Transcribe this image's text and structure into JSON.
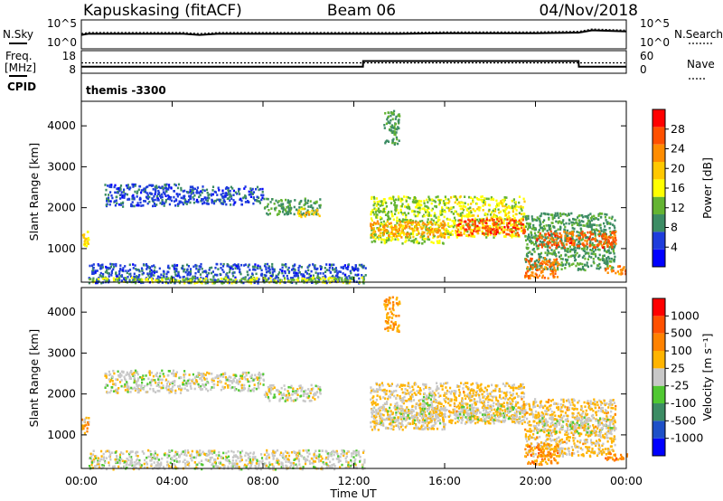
{
  "header": {
    "station": "Kapuskasing (fitACF)",
    "beam": "Beam 06",
    "date": "04/Nov/2018"
  },
  "params_panel": {
    "nsky_label": "N.Sky",
    "nsearch_label": "N.Search",
    "noise_ticks_left": [
      "10^5",
      "10^0"
    ],
    "noise_ticks_right": [
      "10^5",
      "10^0"
    ],
    "freq_label_1": "Freq.",
    "freq_label_2": "[MHz]",
    "freq_ticks": [
      "18",
      "8"
    ],
    "nave_label": "Nave",
    "nave_ticks": [
      "60",
      "0"
    ],
    "cpid_label": "CPID",
    "cpid_value": "themis -3300"
  },
  "power_colorbar": {
    "label": "Power [dB]",
    "ticks": [
      "28",
      "24",
      "20",
      "16",
      "12",
      "8",
      "4"
    ],
    "colors": [
      "#0000ff",
      "#1e3cdc",
      "#3c8c64",
      "#64b432",
      "#ffff00",
      "#ffc800",
      "#ff8c00",
      "#ff5000",
      "#ff0000"
    ]
  },
  "velocity_colorbar": {
    "label": "Velocity [m s⁻¹]",
    "ticks": [
      "1000",
      "500",
      "100",
      "25",
      "-25",
      "-100",
      "-500",
      "-1000"
    ],
    "colors": [
      "#0000ff",
      "#1e50c8",
      "#3c8c64",
      "#50c832",
      "#c8c8c8",
      "#ffb400",
      "#ff8200",
      "#ff5000",
      "#ff0000"
    ]
  },
  "axes": {
    "ylabel": "Slant Range [km]",
    "yticks": [
      "4000",
      "3000",
      "2000",
      "1000"
    ],
    "xticks": [
      "00:00",
      "04:00",
      "08:00",
      "12:00",
      "16:00",
      "20:00",
      "00:00"
    ],
    "xlabel": "Time UT"
  },
  "chart_data": [
    {
      "type": "line",
      "title": "N.Sky / N.Search",
      "x_hours": [
        0,
        0.3,
        2,
        4.5,
        5.2,
        6,
        8,
        10,
        12,
        14,
        16,
        18,
        20,
        21.9,
        22.5,
        24
      ],
      "series": [
        {
          "name": "N.Sky",
          "values": [
            2.4,
            2.6,
            2.6,
            2.6,
            2.4,
            2.6,
            2.6,
            2.6,
            2.6,
            2.6,
            2.7,
            2.7,
            2.7,
            2.8,
            3.2,
            3.0
          ]
        }
      ],
      "ylim": [
        0,
        5
      ]
    },
    {
      "type": "line",
      "title": "Freq. / Nave",
      "x_hours": [
        0,
        12.4,
        12.41,
        21.9,
        21.91,
        24
      ],
      "series": [
        {
          "name": "Freq. [MHz]",
          "values": [
            10.9,
            10.9,
            13.4,
            13.4,
            10.9,
            10.9
          ]
        },
        {
          "name": "Nave",
          "values": [
            30,
            30,
            30,
            30,
            30,
            30
          ]
        }
      ],
      "ylim": [
        8,
        18
      ]
    },
    {
      "type": "heatmap",
      "title": "Power [dB]",
      "xlabel": "Time UT",
      "ylabel": "Slant Range [km]",
      "xlim_hours": [
        0,
        24
      ],
      "ylim_km": [
        180,
        4600
      ],
      "regions": [
        {
          "t": [
            0.0,
            0.3
          ],
          "r": [
            1050,
            1450
          ],
          "value": 18
        },
        {
          "t": [
            0.3,
            12.5
          ],
          "r": [
            180,
            650
          ],
          "value": 6
        },
        {
          "t": [
            0.3,
            12.5
          ],
          "r": [
            180,
            320
          ],
          "value": 14
        },
        {
          "t": [
            1.0,
            4.5
          ],
          "r": [
            2050,
            2600
          ],
          "value": 6
        },
        {
          "t": [
            4.5,
            8.0
          ],
          "r": [
            2100,
            2550
          ],
          "value": 6
        },
        {
          "t": [
            8.0,
            10.5
          ],
          "r": [
            1850,
            2250
          ],
          "value": 10
        },
        {
          "t": [
            9.5,
            10.5
          ],
          "r": [
            1800,
            2000
          ],
          "value": 20
        },
        {
          "t": [
            12.7,
            16.0
          ],
          "r": [
            1150,
            2300
          ],
          "value": 14
        },
        {
          "t": [
            12.7,
            16.0
          ],
          "r": [
            1300,
            1700
          ],
          "value": 22
        },
        {
          "t": [
            13.3,
            14.0
          ],
          "r": [
            3550,
            4400
          ],
          "value": 10
        },
        {
          "t": [
            16.0,
            19.5
          ],
          "r": [
            1300,
            2300
          ],
          "value": 16
        },
        {
          "t": [
            16.5,
            19.5
          ],
          "r": [
            1350,
            1750
          ],
          "value": 27
        },
        {
          "t": [
            19.5,
            23.5
          ],
          "r": [
            500,
            1900
          ],
          "value": 10
        },
        {
          "t": [
            20.0,
            23.5
          ],
          "r": [
            1050,
            1450
          ],
          "value": 26
        },
        {
          "t": [
            19.5,
            21.0
          ],
          "r": [
            300,
            800
          ],
          "value": 24
        },
        {
          "t": [
            23.0,
            24.0
          ],
          "r": [
            400,
            600
          ],
          "value": 24
        }
      ]
    },
    {
      "type": "heatmap",
      "title": "Velocity [m s⁻¹]",
      "xlabel": "Time UT",
      "ylabel": "Slant Range [km]",
      "xlim_hours": [
        0,
        24
      ],
      "ylim_km": [
        180,
        4600
      ],
      "regions": [
        {
          "t": [
            0.0,
            0.3
          ],
          "r": [
            1050,
            1450
          ],
          "value": -300
        },
        {
          "t": [
            0.3,
            12.5
          ],
          "r": [
            180,
            650
          ],
          "value": 0
        },
        {
          "t": [
            1.0,
            4.5
          ],
          "r": [
            2050,
            2600
          ],
          "value": 0
        },
        {
          "t": [
            4.5,
            8.0
          ],
          "r": [
            2100,
            2550
          ],
          "value": 0
        },
        {
          "t": [
            8.0,
            10.5
          ],
          "r": [
            1850,
            2250
          ],
          "value": 0
        },
        {
          "t": [
            12.7,
            16.0
          ],
          "r": [
            1150,
            2300
          ],
          "value": -150
        },
        {
          "t": [
            12.7,
            16.0
          ],
          "r": [
            1300,
            1700
          ],
          "value": 0
        },
        {
          "t": [
            15.0,
            15.6
          ],
          "r": [
            1700,
            2050
          ],
          "value": 150
        },
        {
          "t": [
            13.3,
            14.0
          ],
          "r": [
            3550,
            4400
          ],
          "value": -400
        },
        {
          "t": [
            16.0,
            19.5
          ],
          "r": [
            1300,
            2300
          ],
          "value": -200
        },
        {
          "t": [
            16.5,
            19.5
          ],
          "r": [
            1350,
            1750
          ],
          "value": 0
        },
        {
          "t": [
            19.5,
            23.5
          ],
          "r": [
            500,
            1900
          ],
          "value": -200
        },
        {
          "t": [
            20.0,
            23.5
          ],
          "r": [
            1050,
            1450
          ],
          "value": 0
        },
        {
          "t": [
            19.5,
            21.0
          ],
          "r": [
            300,
            800
          ],
          "value": -500
        },
        {
          "t": [
            23.0,
            24.0
          ],
          "r": [
            400,
            600
          ],
          "value": -500
        }
      ]
    }
  ]
}
